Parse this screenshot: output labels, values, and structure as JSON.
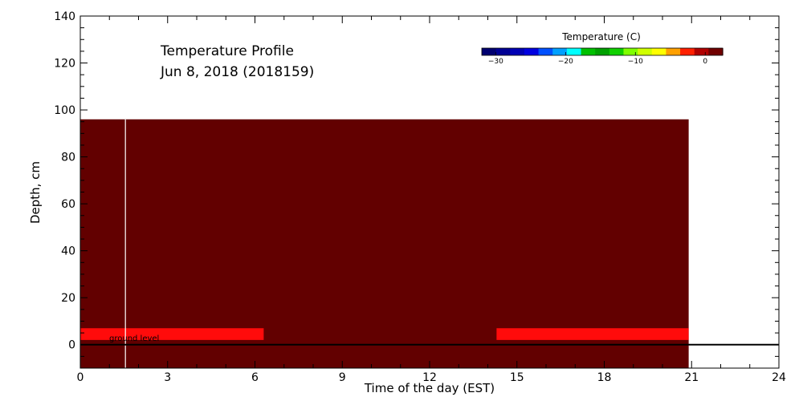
{
  "chart_data": {
    "type": "heatmap",
    "title_line1": "Temperature Profile",
    "title_line2": "Jun  8, 2018 (2018159)",
    "xlabel": "Time of the day (EST)",
    "ylabel": "Depth, cm",
    "xlim": [
      0,
      24
    ],
    "ylim": [
      -10,
      140
    ],
    "x_ticks": [
      0,
      3,
      6,
      9,
      12,
      15,
      18,
      21,
      24
    ],
    "y_ticks": [
      0,
      20,
      40,
      60,
      80,
      100,
      120,
      140
    ],
    "grid": false,
    "field": {
      "x_range": [
        0,
        20.9
      ],
      "y_range": [
        -10,
        96
      ],
      "color": "#620000"
    },
    "bands": [
      {
        "x_range": [
          0,
          6.3
        ],
        "y_range": [
          2,
          7
        ],
        "color": "#ff0b0b"
      },
      {
        "x_range": [
          14.3,
          20.9
        ],
        "y_range": [
          2,
          7
        ],
        "color": "#ff0b0b"
      }
    ],
    "gap_line": {
      "x": 1.55,
      "color": "#ffffff"
    },
    "ground_line": {
      "y": 0
    },
    "ground_label": "ground level",
    "colorbar": {
      "title": "Temperature (C)",
      "range": [
        -32,
        2.5
      ],
      "ticks": [
        -30,
        -20,
        -10,
        0
      ],
      "colors": [
        "#000070",
        "#000094",
        "#0000b4",
        "#0000e0",
        "#0050ff",
        "#00a0ff",
        "#00ffff",
        "#00c000",
        "#00a000",
        "#10d000",
        "#80ff00",
        "#d0ff00",
        "#ffff00",
        "#ffa000",
        "#ff2000",
        "#b00000",
        "#700000"
      ]
    }
  }
}
